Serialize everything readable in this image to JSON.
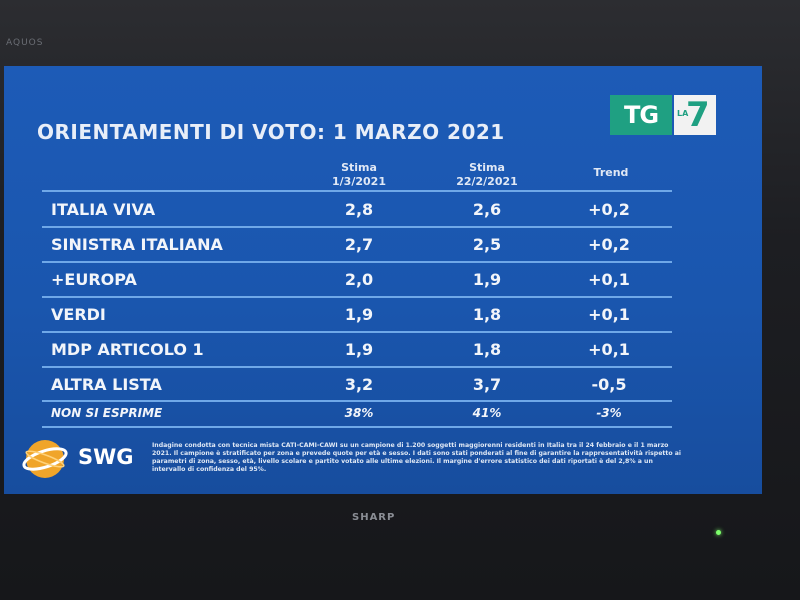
{
  "tv": {
    "brand_top": "AQUOS",
    "brand_bottom": "SHARP"
  },
  "logo": {
    "tg": "TG",
    "la": "LA",
    "seven": "7"
  },
  "title": "ORIENTAMENTI DI VOTO: 1 MARZO 2021",
  "columns": {
    "col1_line1": "Stima",
    "col1_line2": "1/3/2021",
    "col2_line1": "Stima",
    "col2_line2": "22/2/2021",
    "col3": "Trend"
  },
  "rows": [
    {
      "name": "ITALIA VIVA",
      "a": "2,8",
      "b": "2,6",
      "trend": "+0,2"
    },
    {
      "name": "SINISTRA ITALIANA",
      "a": "2,7",
      "b": "2,5",
      "trend": "+0,2"
    },
    {
      "name": "+EUROPA",
      "a": "2,0",
      "b": "1,9",
      "trend": "+0,1"
    },
    {
      "name": "VERDI",
      "a": "1,9",
      "b": "1,8",
      "trend": "+0,1"
    },
    {
      "name": "MDP ARTICOLO 1",
      "a": "1,9",
      "b": "1,8",
      "trend": "+0,1"
    },
    {
      "name": "ALTRA LISTA",
      "a": "3,2",
      "b": "3,7",
      "trend": "-0,5"
    }
  ],
  "no_opinion": {
    "name": "NON SI ESPRIME",
    "a": "38%",
    "b": "41%",
    "trend": "-3%"
  },
  "swg": {
    "text": "SWG"
  },
  "footnote": "Indagine condotta con tecnica mista CATI-CAMI-CAWI su un campione di 1.200 soggetti maggiorenni residenti in Italia tra il 24 febbraio e il 1 marzo 2021. Il campione è stratificato per zona e prevede quote per età e sesso. I dati sono stati ponderati al fine di garantire la rappresentatività rispetto ai parametri di zona, sesso, età, livello scolare e partito votato alle ultime elezioni. Il margine d'errore statistico dei dati riportati è del 2,8% a un intervallo di confidenza del 95%.",
  "colors": {
    "screen_blue": "#1a56ae",
    "tg_green": "#1fa082",
    "rule": "#6fa8e8"
  }
}
